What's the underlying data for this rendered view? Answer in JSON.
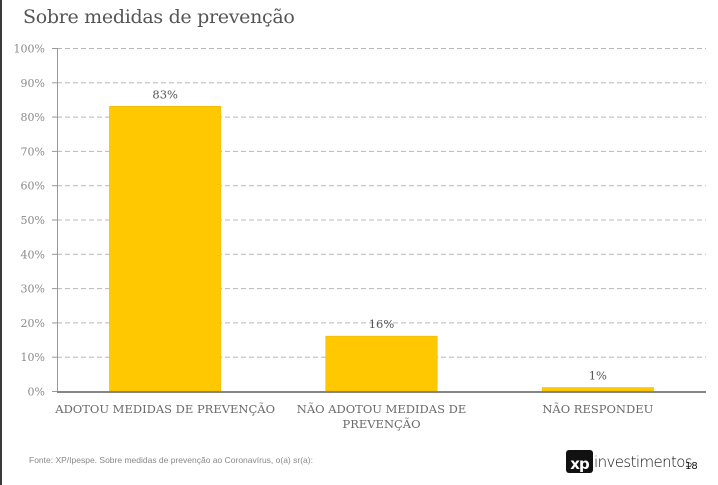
{
  "title": "Sobre medidas de prevenção",
  "chart_data": {
    "type": "bar",
    "title": "Sobre medidas de prevenção",
    "xlabel": "",
    "ylabel": "",
    "categories": [
      "ADOTOU MEDIDAS DE PREVENÇÃO",
      "NÃO ADOTOU MEDIDAS DE PREVENÇÃO",
      "NÃO RESPONDEU"
    ],
    "category_lines": [
      [
        "ADOTOU MEDIDAS DE PREVENÇÃO"
      ],
      [
        "NÃO ADOTOU MEDIDAS DE",
        "PREVENÇÃO"
      ],
      [
        "NÃO RESPONDEU"
      ]
    ],
    "values": [
      83,
      16,
      1
    ],
    "data_labels": [
      "83%",
      "16%",
      "1%"
    ],
    "ylim": [
      0,
      100
    ],
    "yticks": [
      0,
      10,
      20,
      30,
      40,
      50,
      60,
      70,
      80,
      90,
      100
    ],
    "ytick_labels": [
      "0%",
      "10%",
      "20%",
      "30%",
      "40%",
      "50%",
      "60%",
      "70%",
      "80%",
      "90%",
      "100%"
    ],
    "grid": true,
    "legend": "none",
    "bar_color": "#FFC800"
  },
  "footer": {
    "source": "Fonte: XP/Ipespe. Sobre medidas de prevenção ao Coronavírus, o(a) sr(a):",
    "logo_mark": "xp",
    "logo_text": "investimentos",
    "page_number": "18"
  }
}
